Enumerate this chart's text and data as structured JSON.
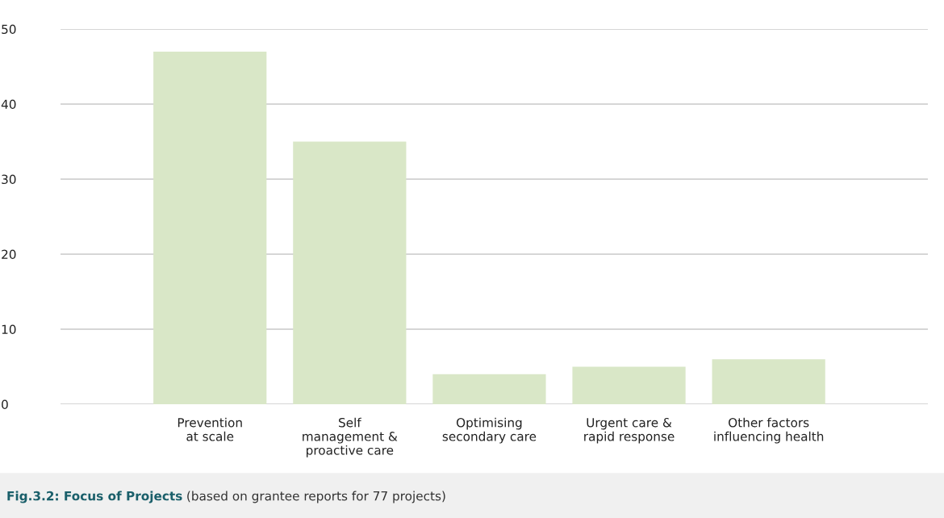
{
  "chart_data": {
    "type": "bar",
    "title": "Fig.3.2: Focus of Projects",
    "subtitle": "(based on grantee reports for 77 projects)",
    "categories": [
      "Prevention\nat scale",
      "Self\nmanagement &\nproactive care",
      "Optimising\nsecondary care",
      "Urgent care &\nrapid response",
      "Other factors\ninfluencing health"
    ],
    "values": [
      47,
      35,
      4,
      5,
      6
    ],
    "color": "#d9e7c7",
    "ylim": [
      0,
      50
    ],
    "yticks": [
      0,
      10,
      20,
      30,
      40,
      50
    ],
    "grid": "y"
  }
}
